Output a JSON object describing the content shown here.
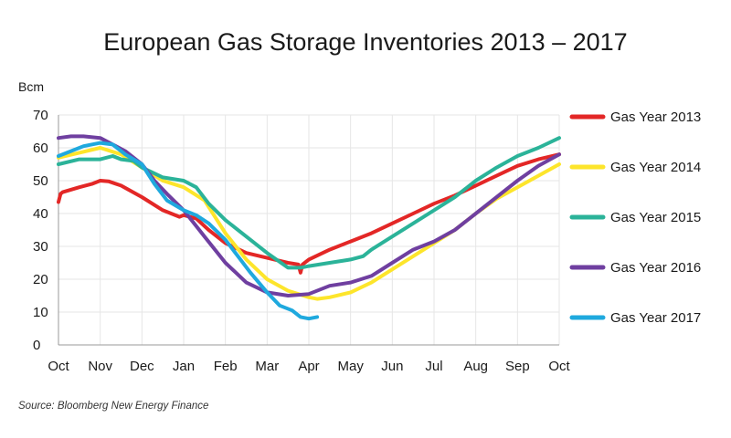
{
  "chart_data": {
    "type": "line",
    "title": "European Gas Storage Inventories 2013 – 2017",
    "ylabel": "Bcm",
    "source": "Source: Bloomberg New Energy Finance",
    "ylim": [
      0,
      70
    ],
    "yticks": [
      0,
      10,
      20,
      30,
      40,
      50,
      60,
      70
    ],
    "x_months": [
      "Oct",
      "Nov",
      "Dec",
      "Jan",
      "Feb",
      "Mar",
      "Apr",
      "May",
      "Jun",
      "Jul",
      "Aug",
      "Sep",
      "Oct"
    ],
    "x_unit": "months since 1 Oct",
    "grid": true,
    "legend_position": "right",
    "series": [
      {
        "name": "Gas Year 2013",
        "color": "#e32726",
        "x": [
          0,
          0.05,
          0.1,
          0.5,
          0.8,
          1.0,
          1.2,
          1.5,
          2.0,
          2.5,
          2.9,
          3.0,
          3.3,
          3.6,
          4.0,
          4.5,
          5.0,
          5.5,
          5.75,
          5.8,
          5.85,
          6.0,
          6.5,
          7.0,
          7.5,
          8.0,
          8.5,
          9.0,
          9.5,
          10.0,
          10.5,
          11.0,
          11.5,
          12.0
        ],
        "y": [
          43.5,
          46,
          46.5,
          48,
          49,
          50,
          49.8,
          48.5,
          45,
          41,
          39,
          39.5,
          38.5,
          35,
          31,
          28,
          26.5,
          25,
          24.5,
          22,
          24.5,
          26,
          29,
          31.5,
          34,
          37,
          40,
          43,
          45.5,
          48.5,
          51.5,
          54.5,
          56.5,
          58
        ]
      },
      {
        "name": "Gas Year 2014",
        "color": "#fde52b",
        "x": [
          0,
          0.5,
          1.0,
          1.5,
          2.0,
          2.5,
          3.0,
          3.5,
          4.0,
          4.5,
          5.0,
          5.5,
          6.0,
          6.2,
          6.5,
          7.0,
          7.5,
          8.0,
          8.5,
          9.0,
          9.5,
          10.0,
          10.5,
          11.0,
          11.5,
          12.0
        ],
        "y": [
          57,
          58.5,
          60,
          58,
          54,
          50,
          48,
          44,
          34,
          26,
          20,
          16.5,
          14.5,
          14,
          14.5,
          16,
          19,
          23,
          27,
          31,
          35,
          40,
          44.5,
          48,
          51.5,
          55
        ]
      },
      {
        "name": "Gas Year 2015",
        "color": "#2bb399",
        "x": [
          0,
          0.5,
          1.0,
          1.3,
          1.5,
          1.8,
          2.0,
          2.5,
          3.0,
          3.3,
          3.6,
          4.0,
          4.5,
          5.0,
          5.5,
          5.8,
          6.0,
          6.5,
          7.0,
          7.3,
          7.5,
          8.0,
          8.5,
          9.0,
          9.5,
          10.0,
          10.5,
          11.0,
          11.5,
          12.0
        ],
        "y": [
          55,
          56.5,
          56.5,
          57.5,
          56.5,
          56,
          54,
          51,
          50,
          48,
          43,
          38,
          33,
          28,
          23.5,
          23.5,
          24,
          25,
          26,
          27,
          29,
          33,
          37,
          41,
          45,
          50,
          54,
          57.5,
          60,
          63
        ]
      },
      {
        "name": "Gas Year 2016",
        "color": "#6f3fa0",
        "x": [
          0,
          0.3,
          0.6,
          1.0,
          1.3,
          1.6,
          2.0,
          2.3,
          2.6,
          3.0,
          3.5,
          4.0,
          4.5,
          5.0,
          5.5,
          6.0,
          6.5,
          7.0,
          7.5,
          8.0,
          8.5,
          9.0,
          9.5,
          10.0,
          10.5,
          11.0,
          11.5,
          12.0
        ],
        "y": [
          63,
          63.5,
          63.5,
          63,
          61,
          59,
          55,
          50,
          46,
          41,
          33,
          25,
          19,
          16,
          15,
          15.5,
          18,
          19,
          21,
          25,
          29,
          31.5,
          35,
          40,
          45,
          50,
          54.5,
          58
        ]
      },
      {
        "name": "Gas Year 2017",
        "color": "#1fa9de",
        "x": [
          0,
          0.3,
          0.6,
          1.0,
          1.3,
          1.6,
          2.0,
          2.3,
          2.6,
          3.0,
          3.3,
          3.6,
          4.0,
          4.3,
          4.6,
          5.0,
          5.3,
          5.6,
          5.8,
          6.0,
          6.2
        ],
        "y": [
          57.5,
          59,
          60.5,
          61.5,
          61,
          58,
          55,
          49,
          44,
          41,
          39.5,
          37,
          32,
          27,
          22,
          16,
          12,
          10.5,
          8.5,
          8,
          8.5
        ]
      }
    ]
  }
}
